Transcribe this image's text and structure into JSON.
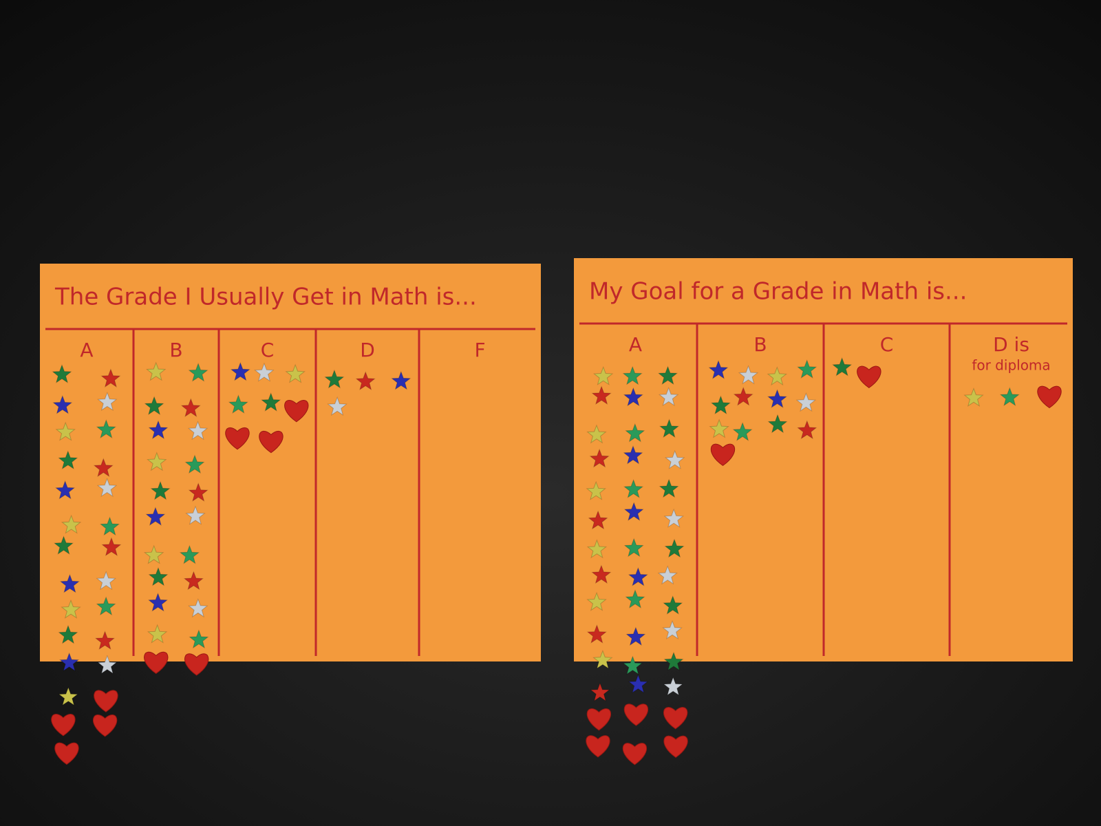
{
  "boards": [
    {
      "title": "The Grade I Usually Get in Math is...",
      "columns": [
        {
          "label": "A",
          "stars": 23,
          "hearts": 4
        },
        {
          "label": "B",
          "stars": 20,
          "hearts": 2
        },
        {
          "label": "C",
          "stars": 5,
          "hearts": 3
        },
        {
          "label": "D",
          "stars": 4,
          "hearts": 0
        },
        {
          "label": "F",
          "stars": 0,
          "hearts": 0
        }
      ]
    },
    {
      "title": "My Goal for a Grade in Math is...",
      "columns": [
        {
          "label": "A",
          "stars": 36,
          "hearts": 6
        },
        {
          "label": "B",
          "stars": 12,
          "hearts": 1
        },
        {
          "label": "C",
          "stars": 1,
          "hearts": 1
        },
        {
          "label": "D is",
          "note": "for diploma",
          "stars": 2,
          "hearts": 1
        }
      ]
    }
  ]
}
